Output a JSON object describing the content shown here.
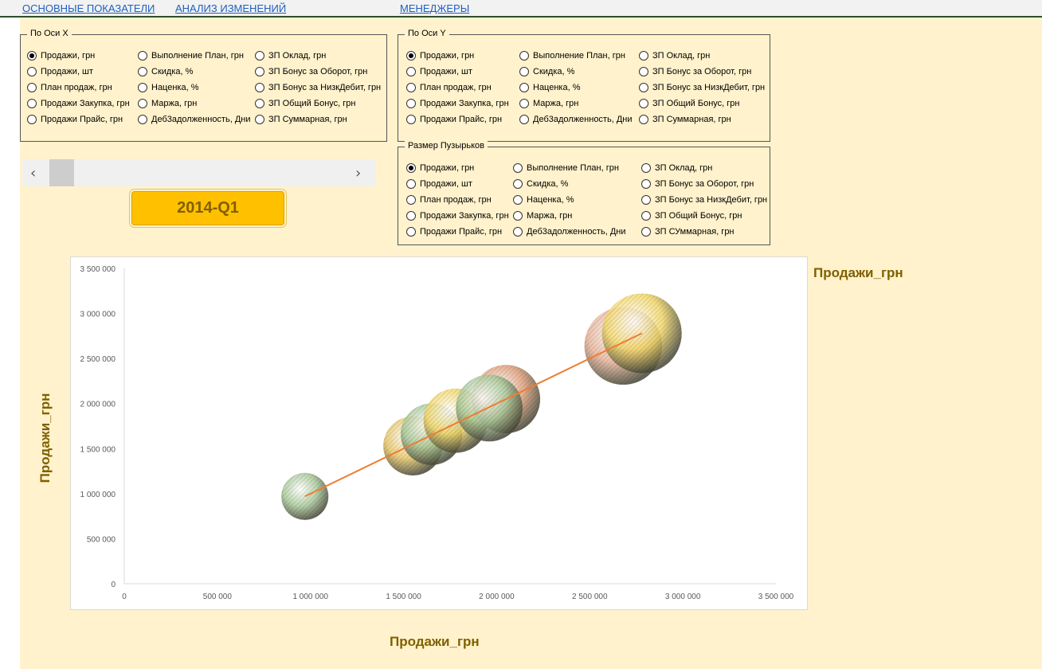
{
  "nav": {
    "links": [
      "ОСНОВНЫЕ ПОКАЗАТЕЛИ",
      "АНАЛИЗ ИЗМЕНЕНИЙ",
      "МЕНЕДЖЕРЫ"
    ]
  },
  "x_axis_group": {
    "title": "По Оси Х",
    "selected_index": 0,
    "options": [
      "Продажи, грн",
      "Продажи, шт",
      "План продаж, грн",
      "Продажи Закупка, грн",
      "Продажи Прайс, грн",
      "Выполнение План, грн",
      "Скидка, %",
      "Наценка, %",
      "Маржа, грн",
      "Деб3адолженность, Дни",
      "ЗП Оклад, грн",
      "ЗП Бонус за Оборот, грн",
      "ЗП Бонус за НизкДебит, грн",
      "ЗП Общий Бонус, грн",
      "ЗП Суммарная, грн"
    ]
  },
  "y_axis_group": {
    "title": "По Оси Y",
    "selected_index": 0,
    "options": [
      "Продажи, грн",
      "Продажи, шт",
      "План продаж, грн",
      "Продажи Закупка, грн",
      "Продажи Прайс, грн",
      "Выполнение План, грн",
      "Скидка, %",
      "Наценка, %",
      "Маржа, грн",
      "Деб3адолженность, Дни",
      "ЗП Оклад, грн",
      "ЗП Бонус за Оборот, грн",
      "ЗП Бонус за НизкДебит, грн",
      "ЗП Общий Бонус, грн",
      "ЗП Суммарная, грн"
    ]
  },
  "bubble_size_group": {
    "title": "Размер Пузырьков",
    "selected_index": 0,
    "options": [
      "Продажи, грн",
      "Продажи, шт",
      "План продаж, грн",
      "Продажи Закупка, грн",
      "Продажи Прайс, грн",
      "Выполнение План, грн",
      "Скидка, %",
      "Наценка, %",
      "Маржа, грн",
      "Деб3адолженность, Дни",
      "ЗП Оклад, грн",
      "ЗП Бонус за Оборот, грн",
      "ЗП Бонус за НизкДебит, грн",
      "ЗП Общий Бонус, грн",
      "ЗП СУммарная, грн"
    ]
  },
  "scroll": {
    "left_icon": "chevron-left-icon",
    "right_icon": "chevron-right-icon",
    "left_glyph": "‹",
    "right_glyph": "›"
  },
  "period_label": "2014-Q1",
  "bubble_legend_label": "Продажи_грн",
  "colors": {
    "bg": "#fff2cc",
    "title_color": "#7f6000",
    "period_bg": "#ffc000",
    "trendline": "#ed7d31",
    "link": "#1f5fbf"
  },
  "chart_data": {
    "type": "scatter",
    "title": "",
    "xlabel": "Продажи_грн",
    "ylabel": "Продажи_грн",
    "xlim": [
      0,
      3500000
    ],
    "ylim": [
      0,
      3500000
    ],
    "x_ticks": [
      "0",
      "500 000",
      "1 000 000",
      "1 500 000",
      "2 000 000",
      "2 500 000",
      "3 000 000",
      "3 500 000"
    ],
    "y_ticks": [
      "0",
      "500 000",
      "1 000 000",
      "1 500 000",
      "2 000 000",
      "2 500 000",
      "3 000 000",
      "3 500 000"
    ],
    "grid": false,
    "trendline": {
      "from": [
        970000,
        970000
      ],
      "to": [
        2780000,
        2780000
      ]
    },
    "points": [
      {
        "x": 970000,
        "y": 970000,
        "size": 970000,
        "color": "#a9c99a"
      },
      {
        "x": 1550000,
        "y": 1530000,
        "size": 1530000,
        "color": "#e8c86a"
      },
      {
        "x": 1650000,
        "y": 1660000,
        "size": 1660000,
        "color": "#a9c99a"
      },
      {
        "x": 1780000,
        "y": 1810000,
        "size": 1810000,
        "color": "#f3d86a"
      },
      {
        "x": 2050000,
        "y": 2050000,
        "size": 2050000,
        "color": "#e0a07c"
      },
      {
        "x": 1960000,
        "y": 1950000,
        "size": 1950000,
        "color": "#a9c99a"
      },
      {
        "x": 2680000,
        "y": 2640000,
        "size": 2640000,
        "color": "#e8b49a"
      },
      {
        "x": 2780000,
        "y": 2780000,
        "size": 2780000,
        "color": "#f3d86a"
      }
    ]
  }
}
